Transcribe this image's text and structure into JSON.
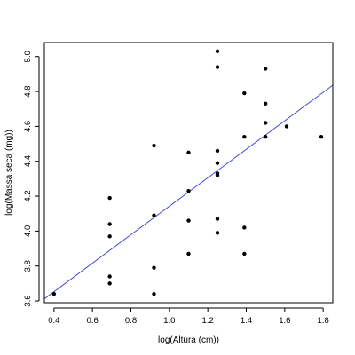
{
  "chart_data": {
    "type": "scatter",
    "title": "",
    "xlabel": "log(Altura (cm))",
    "ylabel": "log(Massa seca (mg))",
    "xlim": [
      0.35,
      1.85
    ],
    "ylim": [
      3.59,
      5.08
    ],
    "x_ticks": [
      0.4,
      0.6,
      0.8,
      1.0,
      1.2,
      1.4,
      1.6,
      1.8
    ],
    "x_tick_labels": [
      "0.4",
      "0.6",
      "0.8",
      "1.0",
      "1.2",
      "1.4",
      "1.6",
      "1.8"
    ],
    "y_ticks": [
      3.6,
      3.8,
      4.0,
      4.2,
      4.4,
      4.6,
      4.8,
      5.0
    ],
    "y_tick_labels": [
      "3.6",
      "3.8",
      "4.0",
      "4.2",
      "4.4",
      "4.6",
      "4.8",
      "5.0"
    ],
    "grid": false,
    "points": [
      {
        "x": 0.4,
        "y": 3.64
      },
      {
        "x": 0.69,
        "y": 3.7
      },
      {
        "x": 0.69,
        "y": 3.74
      },
      {
        "x": 0.69,
        "y": 3.97
      },
      {
        "x": 0.69,
        "y": 4.04
      },
      {
        "x": 0.69,
        "y": 4.19
      },
      {
        "x": 0.92,
        "y": 3.64
      },
      {
        "x": 0.92,
        "y": 3.79
      },
      {
        "x": 0.92,
        "y": 4.09
      },
      {
        "x": 0.92,
        "y": 4.49
      },
      {
        "x": 1.1,
        "y": 3.87
      },
      {
        "x": 1.1,
        "y": 4.06
      },
      {
        "x": 1.1,
        "y": 4.23
      },
      {
        "x": 1.1,
        "y": 4.45
      },
      {
        "x": 1.25,
        "y": 3.99
      },
      {
        "x": 1.25,
        "y": 4.07
      },
      {
        "x": 1.25,
        "y": 4.32
      },
      {
        "x": 1.25,
        "y": 4.33
      },
      {
        "x": 1.25,
        "y": 4.39
      },
      {
        "x": 1.25,
        "y": 4.46
      },
      {
        "x": 1.25,
        "y": 4.94
      },
      {
        "x": 1.25,
        "y": 5.03
      },
      {
        "x": 1.39,
        "y": 3.87
      },
      {
        "x": 1.39,
        "y": 4.02
      },
      {
        "x": 1.39,
        "y": 4.54
      },
      {
        "x": 1.39,
        "y": 4.79
      },
      {
        "x": 1.5,
        "y": 4.54
      },
      {
        "x": 1.5,
        "y": 4.62
      },
      {
        "x": 1.5,
        "y": 4.73
      },
      {
        "x": 1.5,
        "y": 4.93
      },
      {
        "x": 1.61,
        "y": 4.6
      },
      {
        "x": 1.79,
        "y": 4.54
      }
    ],
    "fit_line": {
      "x": [
        0.35,
        1.85
      ],
      "y": [
        3.612,
        4.836
      ]
    },
    "colors": {
      "points": "#000000",
      "fit_line": "#4a4ad6",
      "axes": "#000000"
    }
  }
}
